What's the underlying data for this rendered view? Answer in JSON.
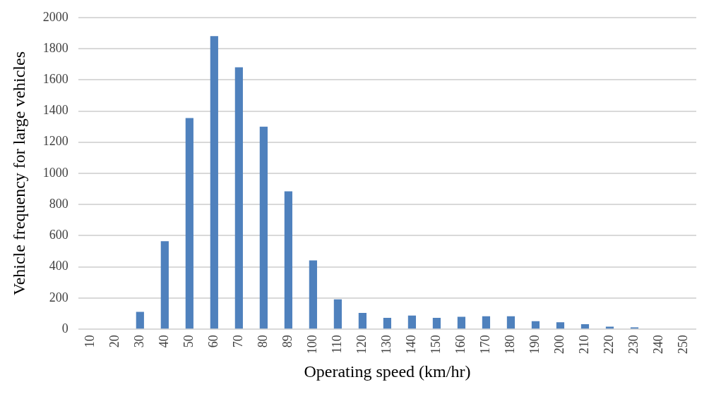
{
  "chart_data": {
    "type": "bar",
    "xlabel": "Operating speed (km/hr)",
    "ylabel": "Vehicle frequency for large vehicles",
    "categories": [
      "10",
      "20",
      "30",
      "40",
      "50",
      "60",
      "70",
      "80",
      "89",
      "100",
      "110",
      "120",
      "130",
      "140",
      "150",
      "160",
      "170",
      "180",
      "190",
      "200",
      "210",
      "220",
      "230",
      "240",
      "250"
    ],
    "values": [
      0,
      0,
      112,
      565,
      1355,
      1880,
      1680,
      1300,
      885,
      442,
      192,
      105,
      73,
      88,
      73,
      80,
      83,
      83,
      52,
      45,
      33,
      17,
      12,
      0,
      0
    ],
    "color": "#4f81bd",
    "ylim": [
      0,
      2000
    ],
    "yticks": [
      0,
      200,
      400,
      600,
      800,
      1000,
      1200,
      1400,
      1600,
      1800,
      2000
    ],
    "grid": "y",
    "legend": false
  }
}
